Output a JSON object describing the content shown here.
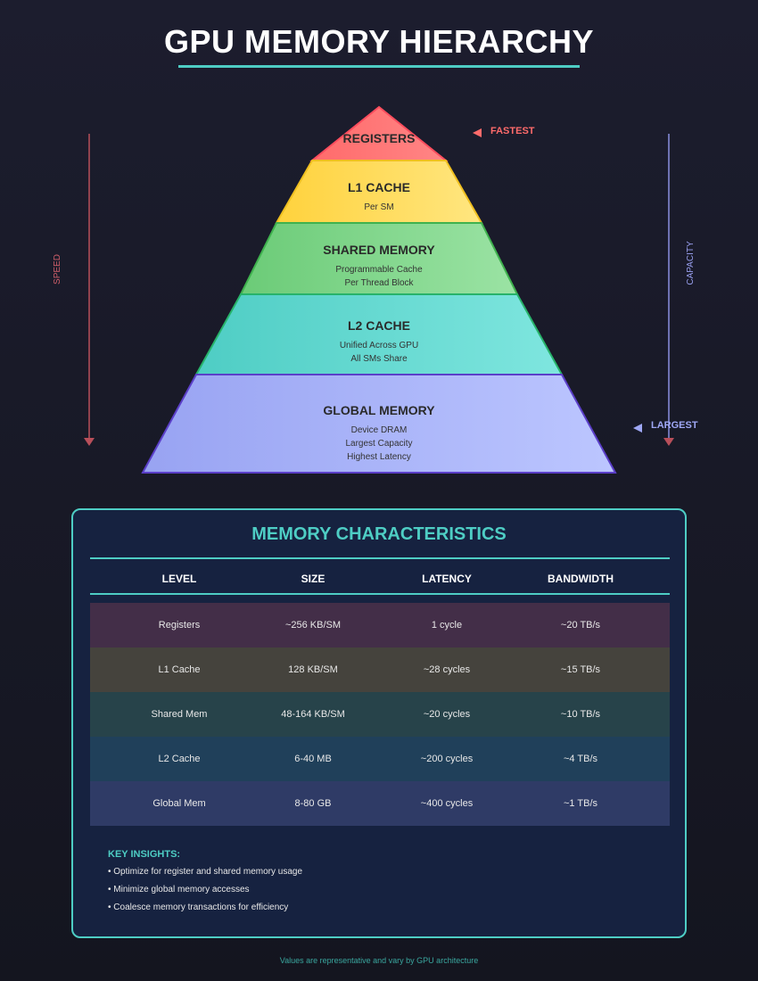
{
  "title": "GPU MEMORY HIERARCHY",
  "pyramid": {
    "levels": [
      {
        "title": "REGISTERS",
        "subs": []
      },
      {
        "title": "L1 CACHE",
        "subs": [
          "Per SM"
        ]
      },
      {
        "title": "SHARED MEMORY",
        "subs": [
          "Programmable Cache",
          "Per Thread Block"
        ]
      },
      {
        "title": "L2 CACHE",
        "subs": [
          "Unified Across GPU",
          "All SMs Share"
        ]
      },
      {
        "title": "GLOBAL MEMORY",
        "subs": [
          "Device DRAM",
          "Largest Capacity",
          "Highest Latency"
        ]
      }
    ],
    "fastest_label": "FASTEST",
    "largest_label": "LARGEST",
    "speed_label": "SPEED",
    "capacity_label": "CAPACITY"
  },
  "table": {
    "title": "MEMORY CHARACTERISTICS",
    "headers": [
      "LEVEL",
      "SIZE",
      "LATENCY",
      "BANDWIDTH"
    ],
    "rows": [
      [
        "Registers",
        "~256 KB/SM",
        "1 cycle",
        "~20 TB/s"
      ],
      [
        "L1 Cache",
        "128 KB/SM",
        "~28 cycles",
        "~15 TB/s"
      ],
      [
        "Shared Mem",
        "48-164 KB/SM",
        "~20 cycles",
        "~10 TB/s"
      ],
      [
        "L2 Cache",
        "6-40 MB",
        "~200 cycles",
        "~4 TB/s"
      ],
      [
        "Global Mem",
        "8-80 GB",
        "~400 cycles",
        "~1 TB/s"
      ]
    ],
    "row_colors": [
      "#432e48",
      "#45433d",
      "#27434a",
      "#20405a",
      "#2f3b66"
    ]
  },
  "insights": {
    "title": "KEY INSIGHTS:",
    "items": [
      "• Optimize for register and shared memory usage",
      "• Minimize global memory accesses",
      "• Coalesce memory transactions for efficiency"
    ]
  },
  "footer": "Values are representative and vary by GPU architecture",
  "colors": {
    "accent": "#4ecdc4",
    "registers": "#ff6b6b",
    "l1": "#ffd93d",
    "shared": "#6bcb77",
    "l2": "#4ecdc4",
    "global": "#9fa8f5"
  }
}
